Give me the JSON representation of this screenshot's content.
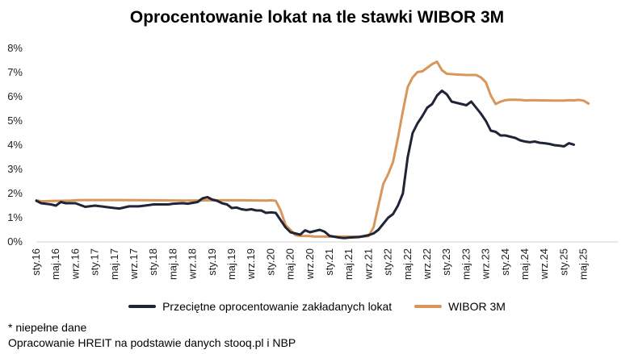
{
  "chart_data": {
    "type": "line",
    "title": "Oprocentowanie lokat na tle stawki WIBOR 3M",
    "xlabel": "",
    "ylabel": "",
    "ylim": [
      0,
      8
    ],
    "y_ticks": [
      "0%",
      "1%",
      "2%",
      "3%",
      "4%",
      "5%",
      "6%",
      "7%",
      "8%"
    ],
    "x_range": [
      2016.0,
      2025.917
    ],
    "x_ticks": [
      {
        "x": 2016.0,
        "label": "sty.16"
      },
      {
        "x": 2016.333,
        "label": "maj.16"
      },
      {
        "x": 2016.667,
        "label": "wrz.16"
      },
      {
        "x": 2017.0,
        "label": "sty.17"
      },
      {
        "x": 2017.333,
        "label": "maj.17"
      },
      {
        "x": 2017.667,
        "label": "wrz.17"
      },
      {
        "x": 2018.0,
        "label": "sty.18"
      },
      {
        "x": 2018.333,
        "label": "maj.18"
      },
      {
        "x": 2018.667,
        "label": "wrz.18"
      },
      {
        "x": 2019.0,
        "label": "sty.19"
      },
      {
        "x": 2019.333,
        "label": "maj.19"
      },
      {
        "x": 2019.667,
        "label": "wrz.19"
      },
      {
        "x": 2020.0,
        "label": "sty.20"
      },
      {
        "x": 2020.333,
        "label": "maj.20"
      },
      {
        "x": 2020.667,
        "label": "wrz.20"
      },
      {
        "x": 2021.0,
        "label": "sty.21"
      },
      {
        "x": 2021.333,
        "label": "maj.21"
      },
      {
        "x": 2021.667,
        "label": "wrz.21"
      },
      {
        "x": 2022.0,
        "label": "sty.22"
      },
      {
        "x": 2022.333,
        "label": "maj.22"
      },
      {
        "x": 2022.667,
        "label": "wrz.22"
      },
      {
        "x": 2023.0,
        "label": "sty.23"
      },
      {
        "x": 2023.333,
        "label": "maj.23"
      },
      {
        "x": 2023.667,
        "label": "wrz.23"
      },
      {
        "x": 2024.0,
        "label": "sty.24"
      },
      {
        "x": 2024.333,
        "label": "maj.24"
      },
      {
        "x": 2024.667,
        "label": "wrz.24"
      },
      {
        "x": 2025.0,
        "label": "sty.25"
      },
      {
        "x": 2025.333,
        "label": "maj.25"
      }
    ],
    "grid": false,
    "legend_position": "bottom",
    "series": [
      {
        "name": "Przeciętne oprocentowanie zakładanych lokat",
        "color": "#1f2537",
        "points": [
          [
            2016.0,
            1.7
          ],
          [
            2016.083,
            1.6
          ],
          [
            2016.25,
            1.55
          ],
          [
            2016.333,
            1.5
          ],
          [
            2016.417,
            1.65
          ],
          [
            2016.5,
            1.6
          ],
          [
            2016.667,
            1.6
          ],
          [
            2016.833,
            1.45
          ],
          [
            2017.0,
            1.5
          ],
          [
            2017.167,
            1.45
          ],
          [
            2017.333,
            1.4
          ],
          [
            2017.417,
            1.38
          ],
          [
            2017.583,
            1.47
          ],
          [
            2017.75,
            1.47
          ],
          [
            2017.917,
            1.52
          ],
          [
            2018.0,
            1.55
          ],
          [
            2018.083,
            1.55
          ],
          [
            2018.25,
            1.55
          ],
          [
            2018.333,
            1.58
          ],
          [
            2018.5,
            1.6
          ],
          [
            2018.583,
            1.58
          ],
          [
            2018.75,
            1.65
          ],
          [
            2018.833,
            1.8
          ],
          [
            2018.917,
            1.85
          ],
          [
            2019.0,
            1.75
          ],
          [
            2019.083,
            1.7
          ],
          [
            2019.167,
            1.6
          ],
          [
            2019.25,
            1.55
          ],
          [
            2019.333,
            1.4
          ],
          [
            2019.417,
            1.42
          ],
          [
            2019.5,
            1.35
          ],
          [
            2019.583,
            1.32
          ],
          [
            2019.667,
            1.35
          ],
          [
            2019.75,
            1.3
          ],
          [
            2019.833,
            1.3
          ],
          [
            2019.917,
            1.2
          ],
          [
            2020.0,
            1.22
          ],
          [
            2020.083,
            1.2
          ],
          [
            2020.167,
            0.9
          ],
          [
            2020.25,
            0.6
          ],
          [
            2020.333,
            0.4
          ],
          [
            2020.5,
            0.3
          ],
          [
            2020.583,
            0.48
          ],
          [
            2020.667,
            0.4
          ],
          [
            2020.833,
            0.5
          ],
          [
            2020.917,
            0.42
          ],
          [
            2021.0,
            0.25
          ],
          [
            2021.167,
            0.18
          ],
          [
            2021.25,
            0.16
          ],
          [
            2021.333,
            0.18
          ],
          [
            2021.5,
            0.2
          ],
          [
            2021.667,
            0.28
          ],
          [
            2021.75,
            0.35
          ],
          [
            2021.833,
            0.5
          ],
          [
            2021.917,
            0.75
          ],
          [
            2022.0,
            1.0
          ],
          [
            2022.083,
            1.15
          ],
          [
            2022.167,
            1.5
          ],
          [
            2022.25,
            2.0
          ],
          [
            2022.333,
            3.5
          ],
          [
            2022.417,
            4.5
          ],
          [
            2022.5,
            4.9
          ],
          [
            2022.583,
            5.2
          ],
          [
            2022.667,
            5.55
          ],
          [
            2022.75,
            5.7
          ],
          [
            2022.833,
            6.05
          ],
          [
            2022.917,
            6.25
          ],
          [
            2023.0,
            6.1
          ],
          [
            2023.083,
            5.8
          ],
          [
            2023.167,
            5.75
          ],
          [
            2023.25,
            5.7
          ],
          [
            2023.333,
            5.65
          ],
          [
            2023.417,
            5.8
          ],
          [
            2023.5,
            5.55
          ],
          [
            2023.583,
            5.3
          ],
          [
            2023.667,
            5.0
          ],
          [
            2023.75,
            4.6
          ],
          [
            2023.833,
            4.55
          ],
          [
            2023.917,
            4.4
          ],
          [
            2024.0,
            4.4
          ],
          [
            2024.083,
            4.35
          ],
          [
            2024.167,
            4.3
          ],
          [
            2024.25,
            4.2
          ],
          [
            2024.333,
            4.15
          ],
          [
            2024.417,
            4.12
          ],
          [
            2024.5,
            4.15
          ],
          [
            2024.583,
            4.1
          ],
          [
            2024.667,
            4.08
          ],
          [
            2024.75,
            4.05
          ],
          [
            2024.833,
            4.0
          ],
          [
            2024.917,
            3.98
          ],
          [
            2025.0,
            3.95
          ],
          [
            2025.083,
            4.08
          ],
          [
            2025.167,
            4.02
          ]
        ]
      },
      {
        "name": "WIBOR 3M",
        "color": "#d9965b",
        "points": [
          [
            2016.0,
            1.72
          ],
          [
            2016.083,
            1.68
          ],
          [
            2016.25,
            1.69
          ],
          [
            2016.417,
            1.7
          ],
          [
            2016.583,
            1.71
          ],
          [
            2016.667,
            1.72
          ],
          [
            2016.75,
            1.73
          ],
          [
            2017.0,
            1.73
          ],
          [
            2017.5,
            1.73
          ],
          [
            2018.0,
            1.72
          ],
          [
            2018.5,
            1.71
          ],
          [
            2019.0,
            1.72
          ],
          [
            2019.5,
            1.72
          ],
          [
            2019.917,
            1.71
          ],
          [
            2020.0,
            1.72
          ],
          [
            2020.083,
            1.7
          ],
          [
            2020.167,
            1.3
          ],
          [
            2020.25,
            0.7
          ],
          [
            2020.333,
            0.5
          ],
          [
            2020.417,
            0.28
          ],
          [
            2020.5,
            0.25
          ],
          [
            2020.667,
            0.24
          ],
          [
            2020.75,
            0.22
          ],
          [
            2021.0,
            0.22
          ],
          [
            2021.417,
            0.22
          ],
          [
            2021.583,
            0.22
          ],
          [
            2021.667,
            0.24
          ],
          [
            2021.75,
            0.6
          ],
          [
            2021.833,
            1.5
          ],
          [
            2021.917,
            2.4
          ],
          [
            2022.0,
            2.8
          ],
          [
            2022.083,
            3.3
          ],
          [
            2022.167,
            4.3
          ],
          [
            2022.25,
            5.4
          ],
          [
            2022.333,
            6.4
          ],
          [
            2022.417,
            6.8
          ],
          [
            2022.5,
            7.02
          ],
          [
            2022.583,
            7.05
          ],
          [
            2022.667,
            7.2
          ],
          [
            2022.75,
            7.35
          ],
          [
            2022.833,
            7.45
          ],
          [
            2022.917,
            7.1
          ],
          [
            2023.0,
            6.95
          ],
          [
            2023.167,
            6.92
          ],
          [
            2023.333,
            6.9
          ],
          [
            2023.5,
            6.9
          ],
          [
            2023.583,
            6.8
          ],
          [
            2023.667,
            6.6
          ],
          [
            2023.75,
            6.05
          ],
          [
            2023.833,
            5.7
          ],
          [
            2023.917,
            5.8
          ],
          [
            2024.0,
            5.86
          ],
          [
            2024.083,
            5.88
          ],
          [
            2024.25,
            5.87
          ],
          [
            2024.333,
            5.85
          ],
          [
            2024.5,
            5.86
          ],
          [
            2024.583,
            5.85
          ],
          [
            2024.667,
            5.85
          ],
          [
            2024.833,
            5.84
          ],
          [
            2025.0,
            5.84
          ],
          [
            2025.083,
            5.86
          ],
          [
            2025.167,
            5.85
          ],
          [
            2025.25,
            5.87
          ],
          [
            2025.333,
            5.84
          ],
          [
            2025.417,
            5.72
          ]
        ]
      }
    ]
  },
  "notes": {
    "partial_data": "* niepełne dane",
    "source": "Opracowanie HREIT na podstawie danych stooq.pl i NBP"
  }
}
